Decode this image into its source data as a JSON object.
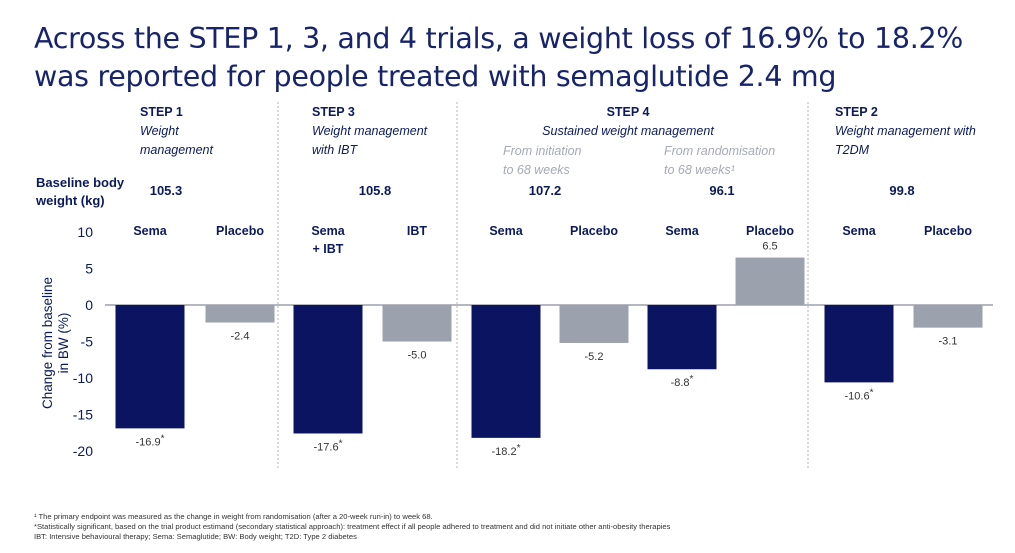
{
  "title": {
    "line1": "Across the STEP 1, 3, and 4 trials, a weight loss of 16.9% to 18.2%",
    "line2": "was reported for people treated with semaglutide 2.4 mg"
  },
  "colors": {
    "sema": "#0b1461",
    "placebo": "#9ca2ad",
    "text": "#0b1a5c",
    "sub_text": "#a6a9b6",
    "divider": "#b5b5b5"
  },
  "baseline_label": [
    "Baseline body",
    "weight (kg)"
  ],
  "trials": [
    {
      "name": "STEP 1",
      "desc": [
        "Weight",
        "management"
      ]
    },
    {
      "name": "STEP 3",
      "desc": [
        "Weight management",
        "with IBT"
      ]
    },
    {
      "name": "STEP 4",
      "desc": [
        "Sustained weight management"
      ],
      "sub": [
        [
          "From initiation",
          "to 68 weeks"
        ],
        [
          "From randomisation",
          "to 68 weeks¹"
        ]
      ]
    },
    {
      "name": "STEP 2",
      "desc": [
        "Weight management with",
        "T2DM"
      ]
    }
  ],
  "baselines": [
    "105.3",
    "105.8",
    "107.2",
    "96.1",
    "99.8"
  ],
  "chart_data": {
    "type": "bar",
    "ylabel": [
      "Change from baseline",
      "in BW (%)"
    ],
    "ylim": [
      -20,
      10
    ],
    "yticks": [
      "10",
      "5",
      "0",
      "-5",
      "-10",
      "-15",
      "-20"
    ],
    "bars": [
      {
        "trial": "STEP 1",
        "category": [
          "Sema"
        ],
        "series": "sema",
        "value": -16.9,
        "label": "-16.9",
        "significant": true
      },
      {
        "trial": "STEP 1",
        "category": [
          "Placebo"
        ],
        "series": "placebo",
        "value": -2.4,
        "label": "-2.4",
        "significant": false
      },
      {
        "trial": "STEP 3",
        "category": [
          "Sema",
          "+ IBT"
        ],
        "series": "sema",
        "value": -17.6,
        "label": "-17.6",
        "significant": true
      },
      {
        "trial": "STEP 3",
        "category": [
          "IBT"
        ],
        "series": "placebo",
        "value": -5.0,
        "label": "-5.0",
        "significant": false
      },
      {
        "trial": "STEP 4",
        "category": [
          "Sema"
        ],
        "series": "sema",
        "value": -18.2,
        "label": "-18.2",
        "significant": true
      },
      {
        "trial": "STEP 4",
        "category": [
          "Placebo"
        ],
        "series": "placebo",
        "value": -5.2,
        "label": "-5.2",
        "significant": false
      },
      {
        "trial": "STEP 4",
        "category": [
          "Sema"
        ],
        "series": "sema",
        "value": -8.8,
        "label": "-8.8",
        "significant": true
      },
      {
        "trial": "STEP 4",
        "category": [
          "Placebo"
        ],
        "series": "placebo",
        "value": 6.5,
        "label": "6.5",
        "significant": false
      },
      {
        "trial": "STEP 2",
        "category": [
          "Sema"
        ],
        "series": "sema",
        "value": -10.6,
        "label": "-10.6",
        "significant": true
      },
      {
        "trial": "STEP 2",
        "category": [
          "Placebo"
        ],
        "series": "placebo",
        "value": -3.1,
        "label": "-3.1",
        "significant": false
      }
    ],
    "significance_marker": "*"
  },
  "footnotes": [
    "¹ The primary endpoint was measured as the change in weight from randomisation (after a 20-week run-in) to week 68.",
    "*Statistically significant, based on the trial product estimand (secondary statistical approach): treatment effect if all people adhered to treatment and did not initiate other anti-obesity therapies",
    "IBT: Intensive behavioural therapy; Sema: Semaglutide; BW: Body weight; T2D: Type 2 diabetes"
  ]
}
